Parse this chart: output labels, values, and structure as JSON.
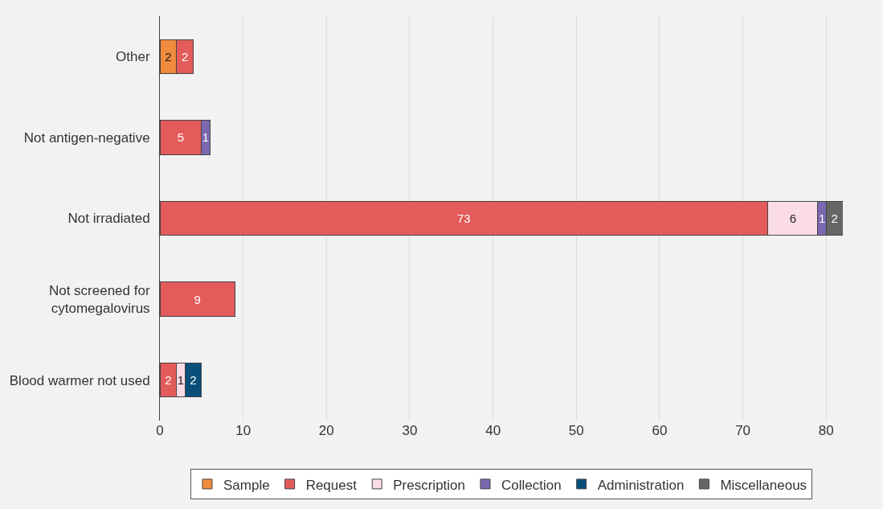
{
  "chart_data": {
    "type": "bar",
    "orientation": "horizontal",
    "stacked": true,
    "data_labels": true,
    "grid": "x",
    "legend": "bottom",
    "categories": [
      "Other",
      "Not antigen-negative",
      "Not irradiated",
      "Not screened for\ncytomegalovirus",
      "Blood warmer not used"
    ],
    "xlim": [
      0,
      82
    ],
    "xticks": [
      0,
      10,
      20,
      30,
      40,
      50,
      60,
      70,
      80
    ],
    "series": [
      {
        "name": "Sample",
        "color": "#f08a3c",
        "values": [
          2,
          null,
          null,
          null,
          null
        ]
      },
      {
        "name": "Request",
        "color": "#e45b5b",
        "values": [
          2,
          5,
          73,
          9,
          2
        ]
      },
      {
        "name": "Prescription",
        "color": "#fadbe6",
        "values": [
          null,
          null,
          6,
          null,
          1
        ]
      },
      {
        "name": "Collection",
        "color": "#7b68b0",
        "values": [
          null,
          1,
          1,
          null,
          null
        ]
      },
      {
        "name": "Administration",
        "color": "#0a4f7a",
        "values": [
          null,
          null,
          null,
          null,
          2
        ]
      },
      {
        "name": "Miscellaneous",
        "color": "#666666",
        "values": [
          null,
          null,
          2,
          null,
          null
        ]
      }
    ]
  }
}
